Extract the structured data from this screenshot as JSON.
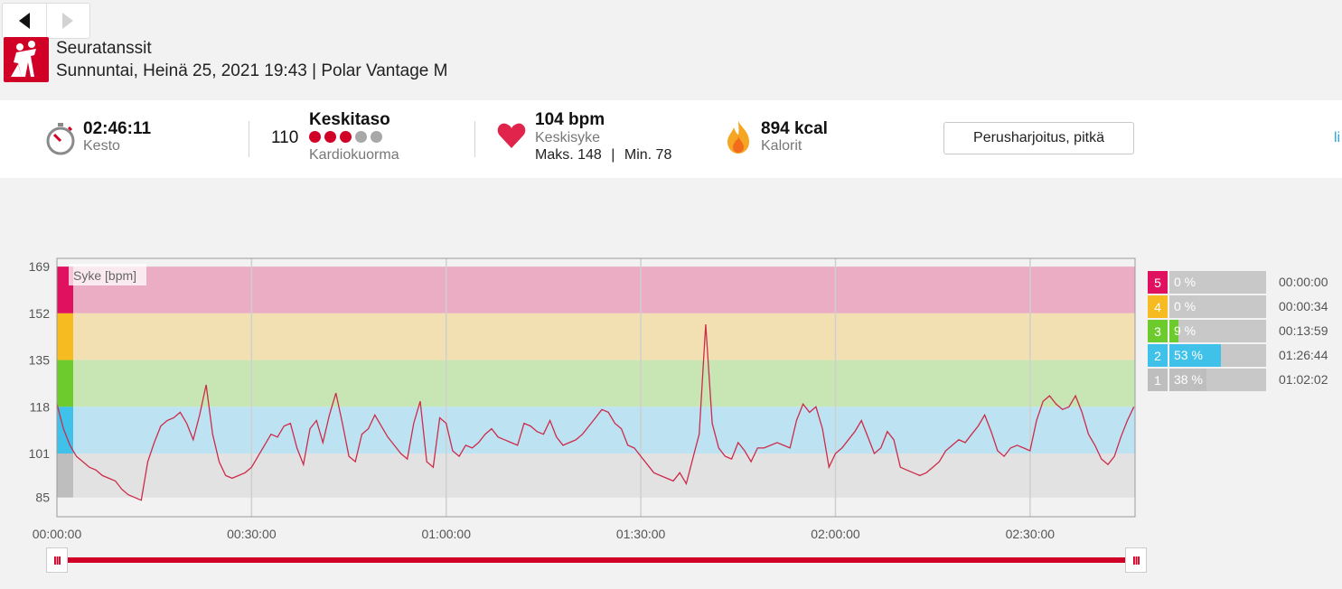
{
  "nav": {
    "back_icon": "triangle-left",
    "forward_icon": "triangle-right"
  },
  "sport": {
    "name": "Seuratanssit",
    "subtitle": "Sunnuntai, Heinä 25, 2021 19:43 | Polar Vantage M",
    "icon": "dancing-couple-icon",
    "icon_color": "#d10027"
  },
  "summary": {
    "duration": {
      "value": "02:46:11",
      "label": "Kesto",
      "icon": "stopwatch-icon"
    },
    "cardio_load": {
      "value": "110",
      "level": "Keskitaso",
      "label": "Kardiokuorma",
      "filled": 3,
      "total": 5
    },
    "heart_rate": {
      "value": "104 bpm",
      "label": "Keskisyke",
      "max": "Maks. 148",
      "sep": "|",
      "min": "Min. 78",
      "icon": "heart-icon"
    },
    "calories": {
      "value": "894 kcal",
      "label": "Kalorit",
      "icon": "flame-icon"
    },
    "training_benefit": "Perusharjoitus, pitkä",
    "cut_link": "li"
  },
  "chart_data": {
    "type": "line",
    "series_label": "Syke [bpm]",
    "ylim": [
      78,
      172
    ],
    "y_ticks": [
      169,
      152,
      135,
      118,
      101,
      85
    ],
    "x_ticks": [
      "00:00:00",
      "00:30:00",
      "01:00:00",
      "01:30:00",
      "02:00:00",
      "02:30:00"
    ],
    "duration_min": 166.18,
    "zones": [
      {
        "zone": 5,
        "from": 152,
        "to": 169,
        "color": "#ebadc3",
        "strip": "#e0115f"
      },
      {
        "zone": 4,
        "from": 135,
        "to": 152,
        "color": "#f3e0b2",
        "strip": "#f6bb20"
      },
      {
        "zone": 3,
        "from": 118,
        "to": 135,
        "color": "#c8e6b4",
        "strip": "#6ecb2d"
      },
      {
        "zone": 2,
        "from": 101,
        "to": 118,
        "color": "#bde3f2",
        "strip": "#3fc1ea"
      },
      {
        "zone": 1,
        "from": 85,
        "to": 101,
        "color": "#e2e2e2",
        "strip": "#bebebe"
      }
    ],
    "line_color": "#cc2b4a",
    "points": [
      [
        0,
        119
      ],
      [
        1,
        110
      ],
      [
        2,
        104
      ],
      [
        3,
        100
      ],
      [
        4,
        98
      ],
      [
        5,
        96
      ],
      [
        6,
        95
      ],
      [
        7,
        93
      ],
      [
        8,
        92
      ],
      [
        9,
        91
      ],
      [
        10,
        88
      ],
      [
        11,
        86
      ],
      [
        12,
        85
      ],
      [
        13,
        84
      ],
      [
        14,
        98
      ],
      [
        15,
        105
      ],
      [
        16,
        111
      ],
      [
        17,
        113
      ],
      [
        18,
        114
      ],
      [
        19,
        116
      ],
      [
        20,
        112
      ],
      [
        21,
        106
      ],
      [
        22,
        115
      ],
      [
        23,
        126
      ],
      [
        24,
        108
      ],
      [
        25,
        98
      ],
      [
        26,
        93
      ],
      [
        27,
        92
      ],
      [
        28,
        93
      ],
      [
        29,
        94
      ],
      [
        30,
        96
      ],
      [
        31,
        100
      ],
      [
        32,
        104
      ],
      [
        33,
        108
      ],
      [
        34,
        107
      ],
      [
        35,
        111
      ],
      [
        36,
        112
      ],
      [
        37,
        103
      ],
      [
        38,
        97
      ],
      [
        39,
        110
      ],
      [
        40,
        113
      ],
      [
        41,
        105
      ],
      [
        42,
        115
      ],
      [
        43,
        123
      ],
      [
        44,
        112
      ],
      [
        45,
        100
      ],
      [
        46,
        98
      ],
      [
        47,
        108
      ],
      [
        48,
        110
      ],
      [
        49,
        115
      ],
      [
        50,
        111
      ],
      [
        51,
        107
      ],
      [
        52,
        104
      ],
      [
        53,
        101
      ],
      [
        54,
        99
      ],
      [
        55,
        112
      ],
      [
        56,
        120
      ],
      [
        57,
        98
      ],
      [
        58,
        96
      ],
      [
        59,
        114
      ],
      [
        60,
        112
      ],
      [
        61,
        102
      ],
      [
        62,
        100
      ],
      [
        63,
        104
      ],
      [
        64,
        103
      ],
      [
        65,
        105
      ],
      [
        66,
        108
      ],
      [
        67,
        110
      ],
      [
        68,
        107
      ],
      [
        69,
        106
      ],
      [
        70,
        105
      ],
      [
        71,
        104
      ],
      [
        72,
        112
      ],
      [
        73,
        111
      ],
      [
        74,
        109
      ],
      [
        75,
        108
      ],
      [
        76,
        113
      ],
      [
        77,
        107
      ],
      [
        78,
        104
      ],
      [
        79,
        105
      ],
      [
        80,
        106
      ],
      [
        81,
        108
      ],
      [
        82,
        111
      ],
      [
        83,
        114
      ],
      [
        84,
        117
      ],
      [
        85,
        116
      ],
      [
        86,
        112
      ],
      [
        87,
        110
      ],
      [
        88,
        104
      ],
      [
        89,
        103
      ],
      [
        90,
        100
      ],
      [
        91,
        97
      ],
      [
        92,
        94
      ],
      [
        93,
        93
      ],
      [
        94,
        92
      ],
      [
        95,
        91
      ],
      [
        96,
        94
      ],
      [
        97,
        90
      ],
      [
        98,
        99
      ],
      [
        99,
        108
      ],
      [
        100,
        148
      ],
      [
        101,
        112
      ],
      [
        102,
        103
      ],
      [
        103,
        100
      ],
      [
        104,
        99
      ],
      [
        105,
        105
      ],
      [
        106,
        102
      ],
      [
        107,
        98
      ],
      [
        108,
        103
      ],
      [
        109,
        103
      ],
      [
        110,
        104
      ],
      [
        111,
        105
      ],
      [
        112,
        104
      ],
      [
        113,
        103
      ],
      [
        114,
        113
      ],
      [
        115,
        119
      ],
      [
        116,
        116
      ],
      [
        117,
        118
      ],
      [
        118,
        110
      ],
      [
        119,
        96
      ],
      [
        120,
        101
      ],
      [
        121,
        103
      ],
      [
        122,
        106
      ],
      [
        123,
        109
      ],
      [
        124,
        113
      ],
      [
        125,
        107
      ],
      [
        126,
        101
      ],
      [
        127,
        103
      ],
      [
        128,
        109
      ],
      [
        129,
        106
      ],
      [
        130,
        96
      ],
      [
        131,
        95
      ],
      [
        132,
        94
      ],
      [
        133,
        93
      ],
      [
        134,
        94
      ],
      [
        135,
        96
      ],
      [
        136,
        98
      ],
      [
        137,
        102
      ],
      [
        138,
        104
      ],
      [
        139,
        106
      ],
      [
        140,
        105
      ],
      [
        141,
        108
      ],
      [
        142,
        111
      ],
      [
        143,
        115
      ],
      [
        144,
        109
      ],
      [
        145,
        102
      ],
      [
        146,
        100
      ],
      [
        147,
        103
      ],
      [
        148,
        104
      ],
      [
        149,
        103
      ],
      [
        150,
        102
      ],
      [
        151,
        113
      ],
      [
        152,
        120
      ],
      [
        153,
        122
      ],
      [
        154,
        119
      ],
      [
        155,
        117
      ],
      [
        156,
        118
      ],
      [
        157,
        122
      ],
      [
        158,
        116
      ],
      [
        159,
        108
      ],
      [
        160,
        104
      ],
      [
        161,
        99
      ],
      [
        162,
        97
      ],
      [
        163,
        100
      ],
      [
        164,
        107
      ],
      [
        165,
        113
      ],
      [
        166,
        118
      ]
    ]
  },
  "zone_legend": [
    {
      "num": "5",
      "pct": "0 %",
      "fill": 0,
      "time": "00:00:00",
      "color": "#e0115f"
    },
    {
      "num": "4",
      "pct": "0 %",
      "fill": 0,
      "time": "00:00:34",
      "color": "#f6bb20"
    },
    {
      "num": "3",
      "pct": "9 %",
      "fill": 9,
      "time": "00:13:59",
      "color": "#6ecb2d"
    },
    {
      "num": "2",
      "pct": "53 %",
      "fill": 53,
      "time": "01:26:44",
      "color": "#3fc1ea"
    },
    {
      "num": "1",
      "pct": "38 %",
      "fill": 38,
      "time": "01:02:02",
      "color": "#bebebe"
    }
  ],
  "slider": {
    "handle_label": "III",
    "start": 0,
    "end": 1
  }
}
